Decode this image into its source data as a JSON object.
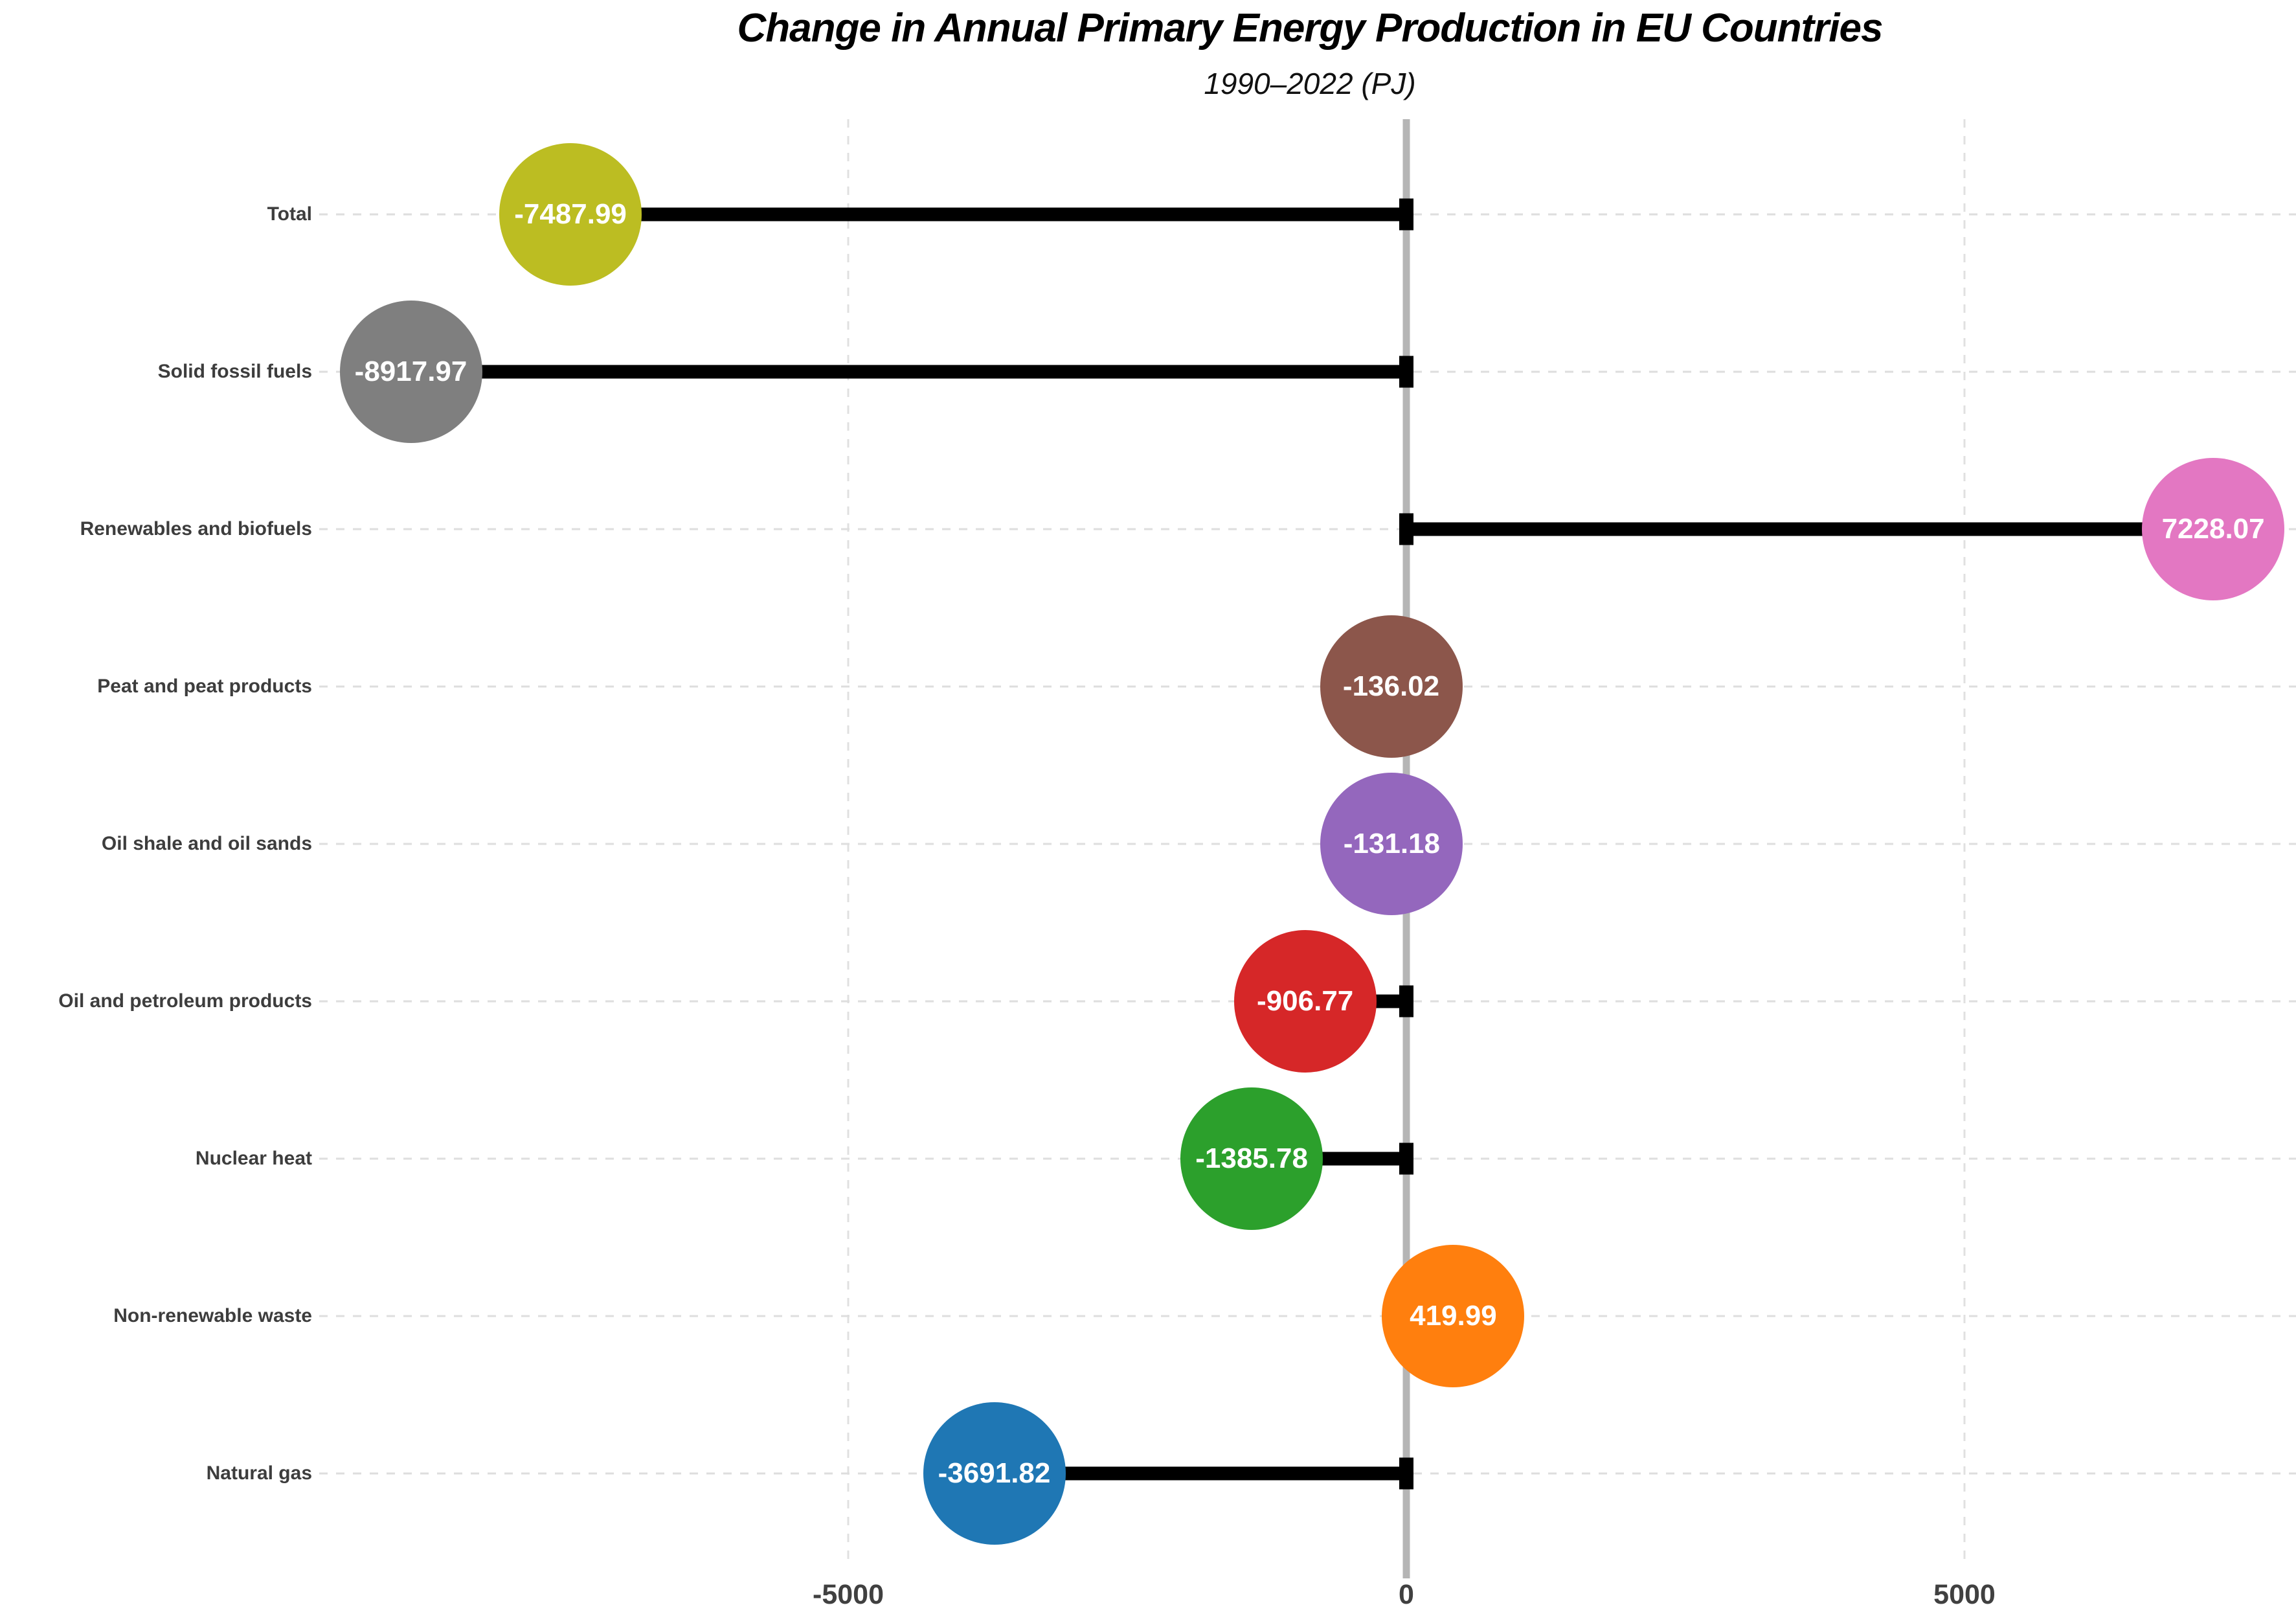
{
  "header": {
    "title": "Change in Annual Primary Energy Production in EU Countries",
    "subtitle": "1990–2022 (PJ)"
  },
  "chart_data": {
    "type": "bar",
    "variant": "horizontal-lollipop",
    "title": "Change in Annual Primary Energy Production in EU Countries",
    "subtitle": "1990–2022 (PJ)",
    "xlabel": "",
    "ylabel": "",
    "xlim": [
      -9720,
      7960
    ],
    "grid": "dashed horizontal per category and dashed vertical at x ticks, solid gray zero line",
    "legend": "none",
    "categories": [
      "Total",
      "Solid fossil fuels",
      "Renewables and biofuels",
      "Peat and peat products",
      "Oil shale and oil sands",
      "Oil and petroleum products",
      "Nuclear heat",
      "Non-renewable waste",
      "Natural gas"
    ],
    "values": [
      -7487.99,
      -8917.97,
      7228.07,
      -136.02,
      -131.18,
      -906.77,
      -1385.78,
      419.99,
      -3691.82
    ],
    "value_labels": [
      "-7487.99",
      "-8917.97",
      "7228.07",
      "-136.02",
      "-131.18",
      "-906.77",
      "-1385.78",
      "419.99",
      "-3691.82"
    ],
    "point_colors": [
      "#bcbd22",
      "#7f7f7f",
      "#e377c2",
      "#8c564b",
      "#9467bd",
      "#d62728",
      "#2ca02c",
      "#ff7f0e",
      "#1f77b4"
    ],
    "x_ticks": [
      {
        "value": -5000,
        "label": "-5000"
      },
      {
        "value": 0,
        "label": "0"
      },
      {
        "value": 5000,
        "label": "5000"
      }
    ],
    "styles": {
      "stem_color": "#000000",
      "zero_line_color": "#b5b5b5",
      "gridline_color": "#dedede",
      "label_color": "#3d3d3d",
      "tick_color": "#404040",
      "value_text_color": "#ffffff"
    }
  }
}
